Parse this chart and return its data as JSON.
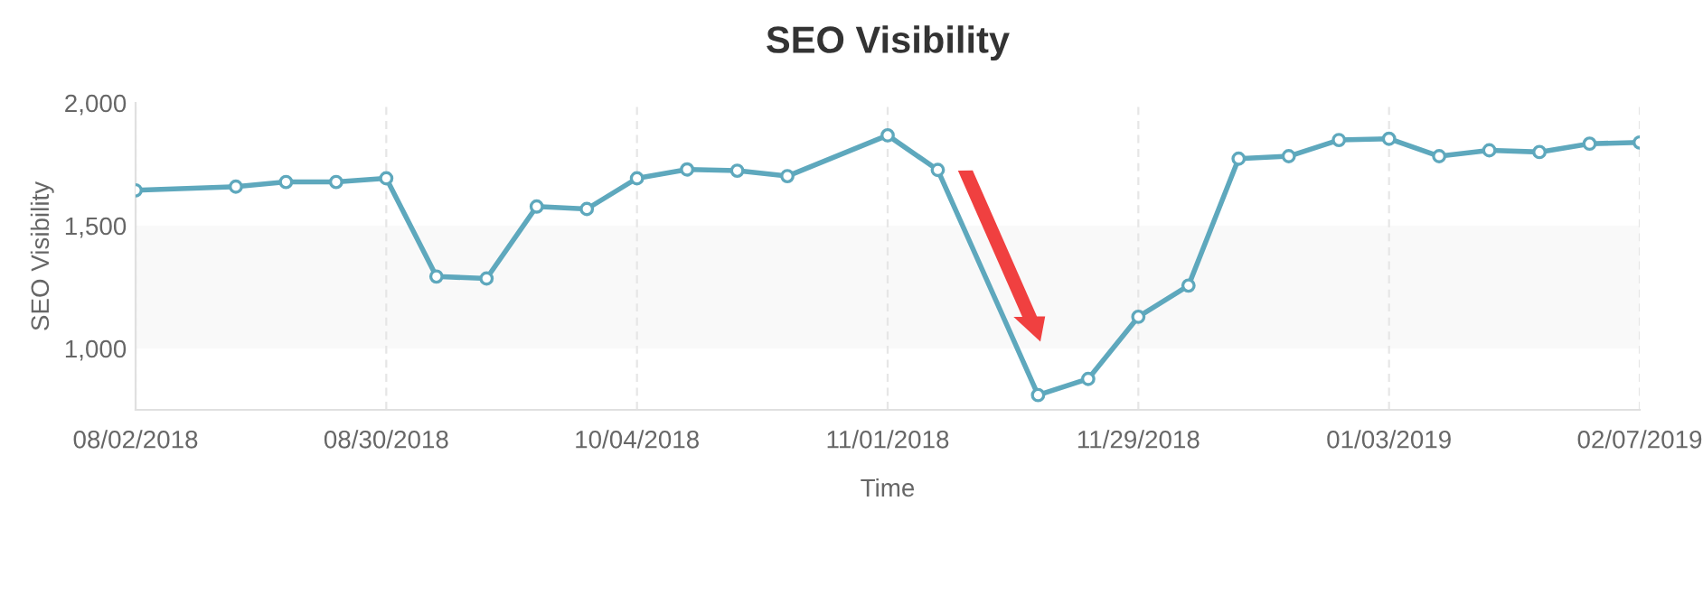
{
  "chart_data": {
    "type": "line",
    "title": "SEO Visibility",
    "xlabel": "Time",
    "ylabel": "SEO Visibility",
    "categories": [
      "08/02/2018",
      null,
      null,
      null,
      null,
      "08/30/2018",
      null,
      null,
      null,
      null,
      "10/04/2018",
      null,
      null,
      null,
      null,
      "11/01/2018",
      null,
      null,
      null,
      null,
      "11/29/2018",
      null,
      null,
      null,
      null,
      "01/03/2019",
      null,
      null,
      null,
      null,
      "02/07/2019"
    ],
    "series": [
      {
        "color": "#5ea8bd",
        "values": [
          1644,
          null,
          1659,
          1678,
          1678,
          1693,
          1293,
          1285,
          1578,
          1568,
          1693,
          1729,
          1724,
          1702,
          null,
          1868,
          1727,
          null,
          810,
          876,
          1129,
          1256,
          1773,
          1783,
          1849,
          1854,
          1783,
          1807,
          1800,
          1834,
          1839
        ]
      }
    ],
    "ylim": [
      750,
      2000
    ],
    "yticks": [
      {
        "value": 1000,
        "label": "1,000"
      },
      {
        "value": 1500,
        "label": "1,500"
      },
      {
        "value": 2000,
        "label": "2,000"
      }
    ],
    "bands": [
      {
        "axis": "y",
        "from": 1000,
        "to": 1500,
        "color": "#f9f9f9"
      }
    ],
    "grid": "x",
    "marker": "circle",
    "line_style": "solid"
  }
}
